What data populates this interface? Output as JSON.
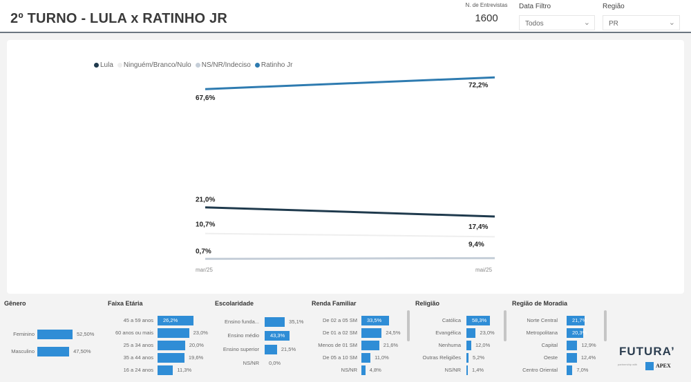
{
  "header": {
    "title": "2º TURNO - LULA x RATINHO JR",
    "kpi_label": "N. de Entrevistas",
    "kpi_value": "1600",
    "filters": [
      {
        "label": "Data Filtro",
        "value": "Todos"
      },
      {
        "label": "Região",
        "value": "PR"
      }
    ]
  },
  "chart_data": {
    "type": "line",
    "x": [
      "mar/25",
      "mai/25"
    ],
    "series": [
      {
        "name": "Lula",
        "color": "#1f3a4d",
        "values": [
          21.0,
          17.4
        ],
        "labels": [
          "21,0%",
          "17,4%"
        ]
      },
      {
        "name": "Ninguém/Branco/Nulo",
        "color": "#eeeeee",
        "values": [
          10.7,
          9.4
        ],
        "labels": [
          "10,7%",
          "9,4%"
        ]
      },
      {
        "name": "NS/NR/Indeciso",
        "color": "#c5ced8",
        "values": [
          0.7,
          1.0
        ],
        "labels": [
          "0,7%",
          ""
        ]
      },
      {
        "name": "Ratinho Jr",
        "color": "#2e7bb0",
        "values": [
          67.6,
          72.2
        ],
        "labels": [
          "67,6%",
          "72,2%"
        ]
      }
    ],
    "legend_position": "top-left",
    "grid": false
  },
  "panels": [
    {
      "title": "Gênero",
      "rows": [
        {
          "label": "Feminino",
          "value": 52.5,
          "text": "52,50%"
        },
        {
          "label": "Masculino",
          "value": 47.5,
          "text": "47,50%"
        }
      ]
    },
    {
      "title": "Faixa Etária",
      "rows": [
        {
          "label": "45 a 59 anos",
          "value": 26.2,
          "text": "26,2%"
        },
        {
          "label": "60 anos ou mais",
          "value": 23.0,
          "text": "23,0%"
        },
        {
          "label": "25 a 34 anos",
          "value": 20.0,
          "text": "20,0%"
        },
        {
          "label": "35 a 44 anos",
          "value": 19.6,
          "text": "19,6%"
        },
        {
          "label": "16 a 24 anos",
          "value": 11.3,
          "text": "11,3%"
        }
      ]
    },
    {
      "title": "Escolaridade",
      "rows": [
        {
          "label": "Ensino funda...",
          "value": 35.1,
          "text": "35,1%"
        },
        {
          "label": "Ensino médio",
          "value": 43.3,
          "text": "43,3%"
        },
        {
          "label": "Ensino superior",
          "value": 21.5,
          "text": "21,5%"
        },
        {
          "label": "NS/NR",
          "value": 0.0,
          "text": "0,0%"
        }
      ]
    },
    {
      "title": "Renda Familiar",
      "rows": [
        {
          "label": "De 02 a 05 SM",
          "value": 33.5,
          "text": "33,5%"
        },
        {
          "label": "De 01 a 02 SM",
          "value": 24.5,
          "text": "24,5%"
        },
        {
          "label": "Menos de 01 SM",
          "value": 21.6,
          "text": "21,6%"
        },
        {
          "label": "De 05 a 10 SM",
          "value": 11.0,
          "text": "11,0%"
        },
        {
          "label": "NS/NR",
          "value": 4.8,
          "text": "4,8%"
        }
      ]
    },
    {
      "title": "Religião",
      "rows": [
        {
          "label": "Católica",
          "value": 58.3,
          "text": "58,3%"
        },
        {
          "label": "Evangélica",
          "value": 23.0,
          "text": "23,0%"
        },
        {
          "label": "Nenhuma",
          "value": 12.0,
          "text": "12,0%"
        },
        {
          "label": "Outras Religiões",
          "value": 5.2,
          "text": "5,2%"
        },
        {
          "label": "NS/NR",
          "value": 1.4,
          "text": "1,4%"
        }
      ]
    },
    {
      "title": "Região de Moradia",
      "rows": [
        {
          "label": "Norte Central",
          "value": 21.7,
          "text": "21,7%"
        },
        {
          "label": "Metropolitana",
          "value": 20.3,
          "text": "20,3%"
        },
        {
          "label": "Capital",
          "value": 12.9,
          "text": "12,9%"
        },
        {
          "label": "Oeste",
          "value": 12.4,
          "text": "12,4%"
        },
        {
          "label": "Centro Oriental",
          "value": 7.0,
          "text": "7,0%"
        }
      ]
    }
  ],
  "branding": {
    "logo": "FUTURA’",
    "partner_text": "partnership with",
    "partner": "APEX"
  }
}
